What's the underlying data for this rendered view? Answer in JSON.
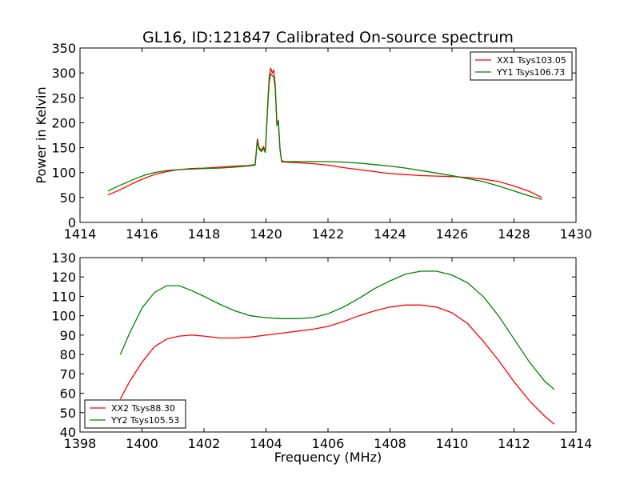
{
  "figure": {
    "title": "GL16, ID:121847 Calibrated On-source spectrum",
    "xlabel": "Frequency (MHz)"
  },
  "chart_data": [
    {
      "type": "line",
      "title": "GL16, ID:121847 Calibrated On-source spectrum",
      "xlabel": "",
      "ylabel": "Power in Kelvin",
      "xlim": [
        1414,
        1430
      ],
      "ylim": [
        0,
        350
      ],
      "xticks": [
        1414,
        1416,
        1418,
        1420,
        1422,
        1424,
        1426,
        1428,
        1430
      ],
      "yticks": [
        0,
        50,
        100,
        150,
        200,
        250,
        300,
        350
      ],
      "grid": false,
      "legend_position": "top-right",
      "series": [
        {
          "name": "XX1 Tsys103.05",
          "color": "#ff0000",
          "x": [
            1414.9,
            1415.2,
            1415.5,
            1415.8,
            1416.1,
            1416.4,
            1416.8,
            1417.2,
            1417.6,
            1418.0,
            1418.5,
            1419.0,
            1419.4,
            1419.65,
            1419.72,
            1419.78,
            1419.85,
            1419.92,
            1419.98,
            1420.05,
            1420.1,
            1420.15,
            1420.2,
            1420.25,
            1420.3,
            1420.35,
            1420.4,
            1420.45,
            1420.5,
            1420.55,
            1420.6,
            1421.0,
            1421.5,
            1422.0,
            1422.5,
            1423.0,
            1423.5,
            1424.0,
            1424.5,
            1425.0,
            1425.5,
            1426.0,
            1426.5,
            1427.0,
            1427.5,
            1428.0,
            1428.5,
            1428.9
          ],
          "y": [
            55,
            63,
            72,
            81,
            89,
            96,
            102,
            106,
            108,
            109,
            111,
            113,
            114,
            116,
            168,
            150,
            145,
            152,
            142,
            230,
            290,
            310,
            300,
            305,
            275,
            200,
            204,
            150,
            122,
            121,
            121,
            120,
            118,
            115,
            110,
            106,
            102,
            98,
            96,
            94,
            93,
            92,
            90,
            87,
            82,
            73,
            62,
            50
          ]
        },
        {
          "name": "YY1 Tsys106.73",
          "color": "#008000",
          "x": [
            1414.9,
            1415.2,
            1415.5,
            1415.8,
            1416.1,
            1416.4,
            1416.8,
            1417.2,
            1417.6,
            1418.0,
            1418.5,
            1419.0,
            1419.4,
            1419.65,
            1419.72,
            1419.78,
            1419.85,
            1419.92,
            1419.98,
            1420.05,
            1420.1,
            1420.15,
            1420.2,
            1420.25,
            1420.3,
            1420.35,
            1420.4,
            1420.45,
            1420.5,
            1420.55,
            1420.6,
            1421.0,
            1421.5,
            1422.0,
            1422.5,
            1423.0,
            1423.5,
            1424.0,
            1424.5,
            1425.0,
            1425.5,
            1426.0,
            1426.5,
            1427.0,
            1427.5,
            1428.0,
            1428.5,
            1428.9
          ],
          "y": [
            63,
            72,
            80,
            88,
            95,
            100,
            104,
            106,
            107,
            108,
            109,
            111,
            113,
            115,
            163,
            147,
            142,
            148,
            140,
            225,
            280,
            298,
            295,
            292,
            268,
            195,
            200,
            148,
            124,
            123,
            122,
            122,
            122,
            122,
            121,
            119,
            116,
            113,
            109,
            104,
            99,
            94,
            88,
            82,
            73,
            63,
            53,
            46
          ]
        }
      ]
    },
    {
      "type": "line",
      "title": "",
      "xlabel": "Frequency (MHz)",
      "ylabel": "",
      "xlim": [
        1398,
        1414
      ],
      "ylim": [
        40,
        130
      ],
      "xticks": [
        1398,
        1400,
        1402,
        1404,
        1406,
        1408,
        1410,
        1412,
        1414
      ],
      "yticks": [
        40,
        50,
        60,
        70,
        80,
        90,
        100,
        110,
        120,
        130
      ],
      "grid": false,
      "legend_position": "bottom-left",
      "series": [
        {
          "name": "XX2 Tsys88.30",
          "color": "#ff0000",
          "x": [
            1399.3,
            1399.6,
            1400.0,
            1400.4,
            1400.8,
            1401.2,
            1401.6,
            1402.0,
            1402.5,
            1403.0,
            1403.5,
            1404.0,
            1404.5,
            1405.0,
            1405.5,
            1406.0,
            1406.5,
            1407.0,
            1407.5,
            1408.0,
            1408.5,
            1409.0,
            1409.5,
            1410.0,
            1410.5,
            1411.0,
            1411.5,
            1412.0,
            1412.5,
            1413.0,
            1413.3
          ],
          "y": [
            57,
            66,
            76,
            84,
            88,
            89.5,
            90,
            89.5,
            88.5,
            88.5,
            89,
            90,
            91,
            92,
            93,
            94.5,
            97,
            100,
            102.5,
            104.5,
            105.5,
            105.5,
            104.5,
            101.5,
            96,
            87,
            77,
            66,
            56,
            48,
            44
          ]
        },
        {
          "name": "YY2 Tsys105.53",
          "color": "#008000",
          "x": [
            1399.3,
            1399.6,
            1400.0,
            1400.4,
            1400.8,
            1401.2,
            1401.6,
            1402.0,
            1402.5,
            1403.0,
            1403.5,
            1404.0,
            1404.5,
            1405.0,
            1405.5,
            1406.0,
            1406.5,
            1407.0,
            1407.5,
            1408.0,
            1408.5,
            1409.0,
            1409.5,
            1410.0,
            1410.5,
            1411.0,
            1411.5,
            1412.0,
            1412.5,
            1413.0,
            1413.3
          ],
          "y": [
            80,
            91,
            104,
            112,
            115.5,
            115.5,
            113,
            110,
            106,
            102.5,
            100,
            99,
            98.5,
            98.5,
            99,
            101,
            104.5,
            109,
            114,
            118,
            121.5,
            123,
            123,
            121,
            117,
            110,
            100,
            88,
            76,
            66,
            62
          ]
        }
      ]
    }
  ]
}
